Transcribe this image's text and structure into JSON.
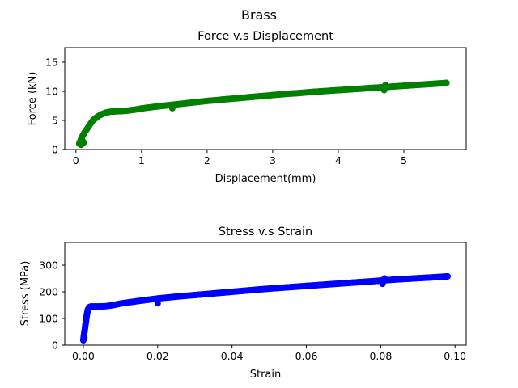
{
  "figure": {
    "suptitle": "Brass"
  },
  "chart_data": [
    {
      "type": "scatter",
      "title": "Force v.s Displacement",
      "xlabel": "Displacement(mm)",
      "ylabel": "Force (kN)",
      "xlim": [
        -0.17,
        5.95
      ],
      "ylim": [
        0,
        17.5
      ],
      "xticks": [
        0,
        1,
        2,
        3,
        4,
        5
      ],
      "xtick_labels": [
        "0",
        "1",
        "2",
        "3",
        "4",
        "5"
      ],
      "yticks": [
        0,
        5,
        10,
        15
      ],
      "ytick_labels": [
        "0",
        "5",
        "10",
        "15"
      ],
      "grid": false,
      "color": "#008000",
      "curve": [
        [
          0.05,
          1.0
        ],
        [
          0.08,
          1.8
        ],
        [
          0.1,
          2.3
        ],
        [
          0.13,
          2.9
        ],
        [
          0.16,
          3.4
        ],
        [
          0.19,
          3.9
        ],
        [
          0.22,
          4.4
        ],
        [
          0.26,
          5.0
        ],
        [
          0.3,
          5.4
        ],
        [
          0.35,
          5.8
        ],
        [
          0.4,
          6.1
        ],
        [
          0.46,
          6.35
        ],
        [
          0.52,
          6.5
        ],
        [
          0.6,
          6.55
        ],
        [
          0.7,
          6.6
        ],
        [
          0.8,
          6.7
        ],
        [
          0.9,
          6.85
        ],
        [
          1.0,
          7.05
        ],
        [
          1.2,
          7.35
        ],
        [
          1.4,
          7.6
        ],
        [
          1.6,
          7.85
        ],
        [
          1.8,
          8.1
        ],
        [
          2.0,
          8.35
        ],
        [
          2.2,
          8.55
        ],
        [
          2.4,
          8.75
        ],
        [
          2.6,
          8.95
        ],
        [
          2.8,
          9.15
        ],
        [
          3.0,
          9.35
        ],
        [
          3.2,
          9.55
        ],
        [
          3.4,
          9.7
        ],
        [
          3.6,
          9.9
        ],
        [
          3.8,
          10.05
        ],
        [
          4.0,
          10.2
        ],
        [
          4.2,
          10.35
        ],
        [
          4.4,
          10.5
        ],
        [
          4.6,
          10.65
        ],
        [
          4.8,
          10.8
        ],
        [
          5.0,
          10.95
        ],
        [
          5.2,
          11.1
        ],
        [
          5.4,
          11.25
        ],
        [
          5.6,
          11.4
        ],
        [
          5.65,
          11.45
        ]
      ],
      "points": [
        [
          0.08,
          0.8
        ],
        [
          0.12,
          1.2
        ],
        [
          0.1,
          1.5
        ],
        [
          1.47,
          7.1
        ],
        [
          4.7,
          10.2
        ],
        [
          4.72,
          11.1
        ]
      ]
    },
    {
      "type": "scatter",
      "title": "Stress v.s Strain",
      "xlabel": "Strain",
      "ylabel": "Stress (MPa)",
      "xlim": [
        -0.005,
        0.103
      ],
      "ylim": [
        0,
        385
      ],
      "xticks": [
        0.0,
        0.02,
        0.04,
        0.06,
        0.08,
        0.1
      ],
      "xtick_labels": [
        "0.00",
        "0.02",
        "0.04",
        "0.06",
        "0.08",
        "0.10"
      ],
      "yticks": [
        0,
        100,
        200,
        300
      ],
      "ytick_labels": [
        "0",
        "100",
        "200",
        "300"
      ],
      "grid": false,
      "color": "#0000ff",
      "curve": [
        [
          0.0,
          20
        ],
        [
          0.0002,
          40
        ],
        [
          0.0004,
          60
        ],
        [
          0.0006,
          80
        ],
        [
          0.0008,
          100
        ],
        [
          0.001,
          118
        ],
        [
          0.0012,
          132
        ],
        [
          0.0015,
          142
        ],
        [
          0.002,
          145
        ],
        [
          0.004,
          145
        ],
        [
          0.006,
          146
        ],
        [
          0.008,
          150
        ],
        [
          0.01,
          156
        ],
        [
          0.015,
          166
        ],
        [
          0.02,
          175
        ],
        [
          0.025,
          182
        ],
        [
          0.03,
          188
        ],
        [
          0.035,
          194
        ],
        [
          0.04,
          200
        ],
        [
          0.045,
          206
        ],
        [
          0.05,
          212
        ],
        [
          0.055,
          217
        ],
        [
          0.06,
          222
        ],
        [
          0.065,
          227
        ],
        [
          0.07,
          232
        ],
        [
          0.075,
          237
        ],
        [
          0.08,
          242
        ],
        [
          0.085,
          247
        ],
        [
          0.09,
          251
        ],
        [
          0.095,
          255
        ],
        [
          0.098,
          258
        ]
      ],
      "points": [
        [
          0.0,
          18
        ],
        [
          0.0003,
          28
        ],
        [
          0.02,
          157
        ],
        [
          0.0805,
          230
        ],
        [
          0.081,
          250
        ]
      ]
    }
  ]
}
